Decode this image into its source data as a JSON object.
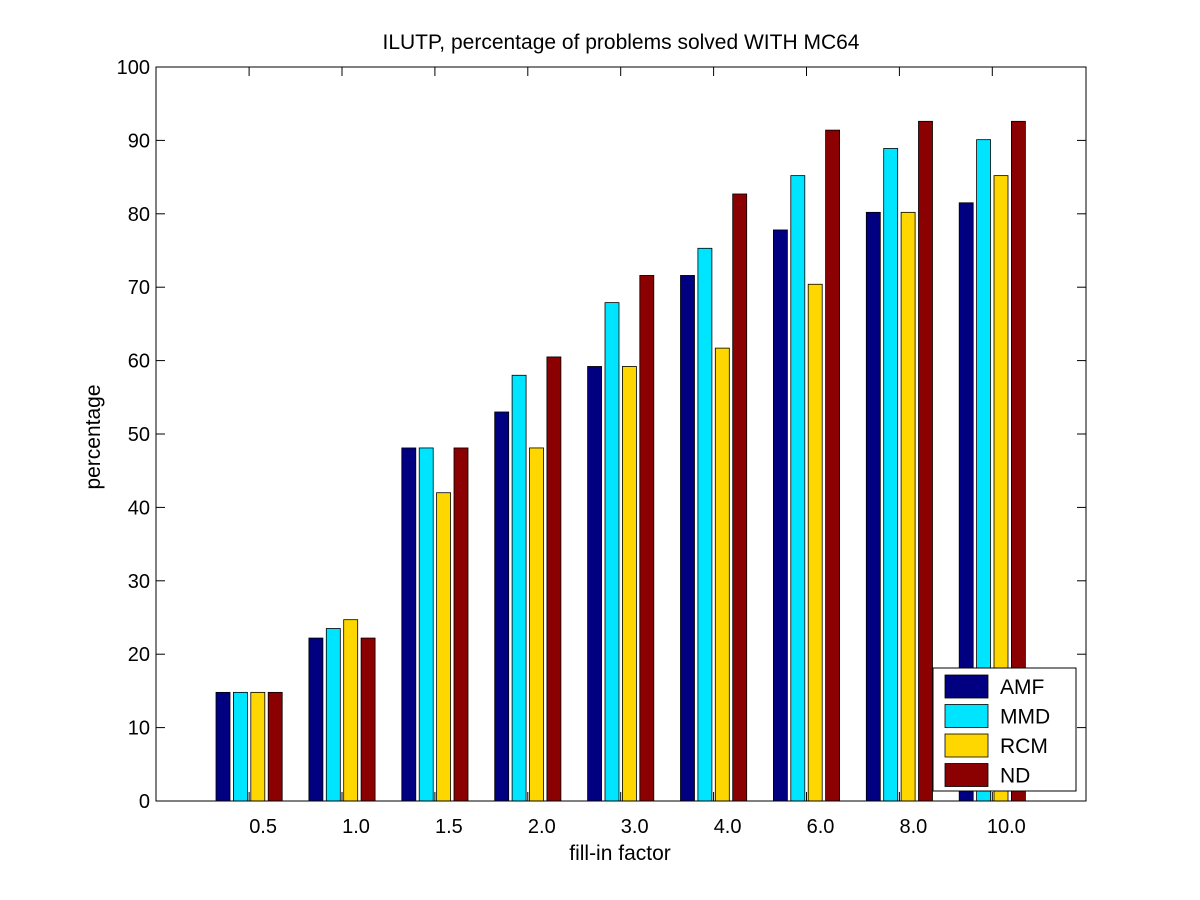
{
  "chart_data": {
    "type": "bar",
    "title": "ILUTP, percentage of problems solved WITH MC64",
    "xlabel": "fill-in factor",
    "ylabel": "percentage",
    "ylim": [
      0,
      100
    ],
    "yticks": [
      0,
      10,
      20,
      30,
      40,
      50,
      60,
      70,
      80,
      90,
      100
    ],
    "categories": [
      "0.5",
      "1.0",
      "1.5",
      "2.0",
      "3.0",
      "4.0",
      "6.0",
      "8.0",
      "10.0"
    ],
    "series": [
      {
        "name": "AMF",
        "color": "#000080",
        "values": [
          14.8,
          22.2,
          48.1,
          53.0,
          59.2,
          71.6,
          77.8,
          80.2,
          81.5
        ]
      },
      {
        "name": "MMD",
        "color": "#00e5ff",
        "values": [
          14.8,
          23.5,
          48.1,
          58.0,
          67.9,
          75.3,
          85.2,
          88.9,
          90.1
        ]
      },
      {
        "name": "RCM",
        "color": "#ffd700",
        "values": [
          14.8,
          24.7,
          42.0,
          48.1,
          59.2,
          61.7,
          70.4,
          80.2,
          85.2
        ]
      },
      {
        "name": "ND",
        "color": "#8b0000",
        "values": [
          14.8,
          22.2,
          48.1,
          60.5,
          71.6,
          82.7,
          91.4,
          92.6,
          92.6
        ]
      }
    ],
    "grid": false,
    "legend_position": "bottom-right"
  }
}
